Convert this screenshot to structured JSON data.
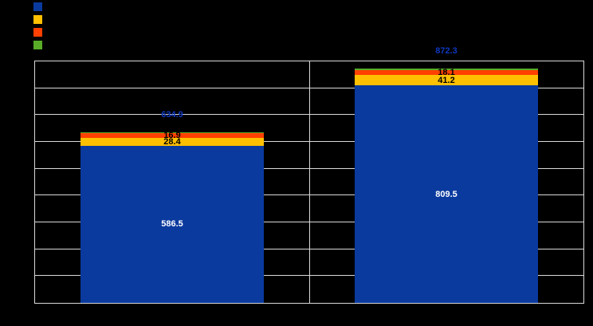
{
  "window": {
    "background": "#000000"
  },
  "legend": {
    "position": "top-left",
    "items": [
      {
        "name": "blue",
        "color": "#0A3A9E"
      },
      {
        "name": "yellow",
        "color": "#FFC000"
      },
      {
        "name": "red",
        "color": "#FF4000"
      },
      {
        "name": "green",
        "color": "#58AC27"
      }
    ]
  },
  "chart_data": {
    "type": "bar",
    "stacked": true,
    "orientation": "vertical",
    "categories": [
      "",
      ""
    ],
    "series": [
      {
        "name": "blue",
        "color": "#0A3A9E",
        "values": [
          586.5,
          809.5
        ],
        "label_color": "#FFFFFF",
        "labels_visible": true
      },
      {
        "name": "yellow",
        "color": "#FFC000",
        "values": [
          28.4,
          41.2
        ],
        "label_color": "#000000",
        "labels_visible": true
      },
      {
        "name": "red",
        "color": "#FF4000",
        "values": [
          16.9,
          18.1
        ],
        "label_color": "#000000",
        "labels_visible": true
      },
      {
        "name": "green",
        "color": "#58AC27",
        "values": [
          3.1,
          3.5
        ],
        "label_color": "#000000",
        "labels_visible": false
      }
    ],
    "totals": {
      "values": [
        634.9,
        872.3
      ],
      "color": "#0D38C0",
      "position": "above-bar"
    },
    "ylim": [
      0,
      900
    ],
    "ytick_step": 100,
    "grid": "horizontal",
    "gridline_color": "#D9D9D9",
    "frame_color": "#D9D9D9",
    "axis_tick_labels_visible": false,
    "legend_position": "top-left"
  }
}
